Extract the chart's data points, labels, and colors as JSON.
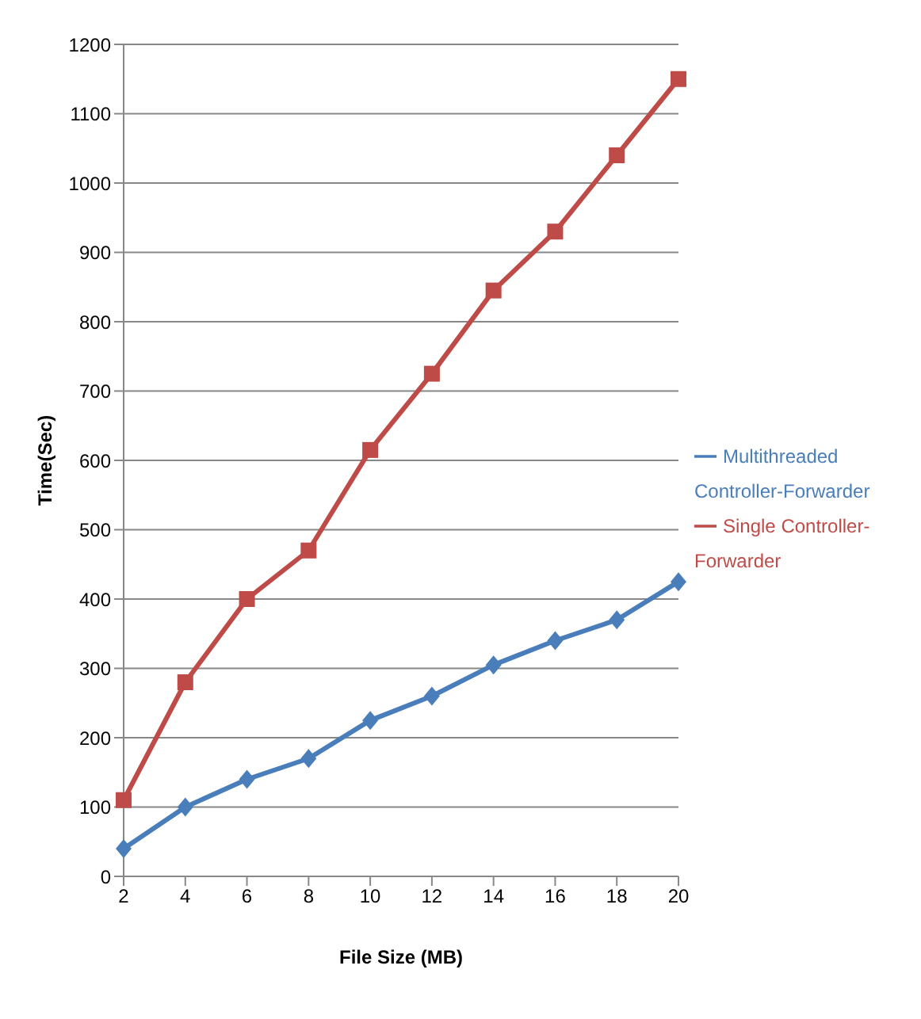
{
  "chart_data": {
    "type": "line",
    "xlabel": "File Size (MB)",
    "ylabel": "Time(Sec)",
    "categories": [
      "2",
      "4",
      "6",
      "8",
      "10",
      "12",
      "14",
      "16",
      "18",
      "20"
    ],
    "series": [
      {
        "name": "Multithreaded Controller-Forwarder",
        "color": "#4a7ebb",
        "marker": "diamond",
        "values": [
          40,
          100,
          140,
          170,
          225,
          260,
          305,
          340,
          370,
          425
        ]
      },
      {
        "name": "Single Controller-Forwarder",
        "color": "#be4b48",
        "marker": "square",
        "values": [
          110,
          280,
          400,
          470,
          615,
          725,
          845,
          930,
          1040,
          1150
        ]
      }
    ],
    "ylim": [
      0,
      1200
    ],
    "yticks": [
      0,
      100,
      200,
      300,
      400,
      500,
      600,
      700,
      800,
      900,
      1000,
      1100,
      1200
    ],
    "grid": "y",
    "legend": "right"
  }
}
